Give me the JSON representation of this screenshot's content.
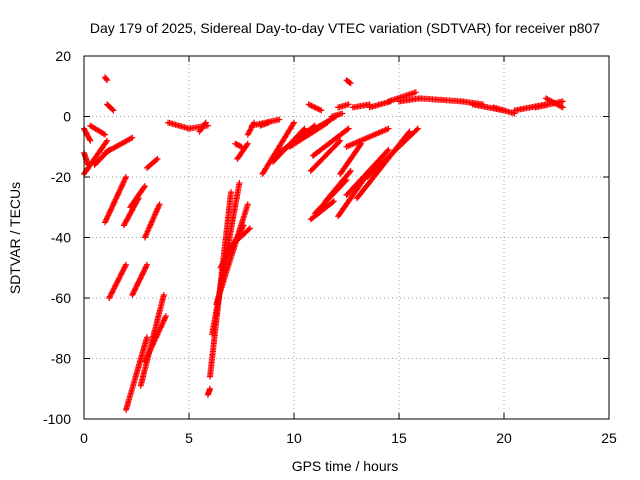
{
  "chart_data": {
    "type": "scatter",
    "title": "Day 179 of 2025, Sidereal Day-to-day VTEC variation (SDTVAR) for receiver p807",
    "xlabel": "GPS time / hours",
    "ylabel": "SDTVAR / TECUs",
    "xlim": [
      0,
      25
    ],
    "ylim": [
      -100,
      20
    ],
    "x_ticks": [
      0,
      5,
      10,
      15,
      20,
      25
    ],
    "y_ticks": [
      -100,
      -80,
      -60,
      -40,
      -20,
      0,
      20
    ],
    "x_tick_labels": [
      "0",
      "5",
      "10",
      "15",
      "20",
      "25"
    ],
    "y_tick_labels": [
      "-100",
      "-80",
      "-60",
      "-40",
      "-20",
      "0",
      "20"
    ],
    "grid": true,
    "marker": "+",
    "series": [
      {
        "name": "SDTVAR",
        "color": "#ff0000",
        "segments": [
          {
            "x": [
              0.0,
              0.3
            ],
            "y": [
              -4,
              -8
            ]
          },
          {
            "x": [
              0.0,
              0.2
            ],
            "y": [
              -12,
              -16
            ]
          },
          {
            "x": [
              0.0,
              1.1
            ],
            "y": [
              -19,
              -8
            ]
          },
          {
            "x": [
              0.3,
              1.0
            ],
            "y": [
              -3,
              -6
            ]
          },
          {
            "x": [
              0.5,
              1.2
            ],
            "y": [
              -16,
              -11
            ]
          },
          {
            "x": [
              1.0,
              2.3
            ],
            "y": [
              -12,
              -7
            ]
          },
          {
            "x": [
              1.0,
              1.1
            ],
            "y": [
              13,
              12
            ]
          },
          {
            "x": [
              1.1,
              1.4
            ],
            "y": [
              4,
              2
            ]
          },
          {
            "x": [
              1.0,
              2.0
            ],
            "y": [
              -35,
              -20
            ]
          },
          {
            "x": [
              1.2,
              2.0
            ],
            "y": [
              -60,
              -49
            ]
          },
          {
            "x": [
              1.9,
              2.6
            ],
            "y": [
              -36,
              -27
            ]
          },
          {
            "x": [
              2.2,
              2.9
            ],
            "y": [
              -30,
              -23
            ]
          },
          {
            "x": [
              2.3,
              3.0
            ],
            "y": [
              -59,
              -49
            ]
          },
          {
            "x": [
              2.0,
              3.0
            ],
            "y": [
              -97,
              -73
            ]
          },
          {
            "x": [
              2.7,
              3.8
            ],
            "y": [
              -89,
              -59
            ]
          },
          {
            "x": [
              2.9,
              3.9
            ],
            "y": [
              -81,
              -66
            ]
          },
          {
            "x": [
              2.9,
              3.6
            ],
            "y": [
              -40,
              -29
            ]
          },
          {
            "x": [
              3.0,
              3.5
            ],
            "y": [
              -17,
              -14
            ]
          },
          {
            "x": [
              4.0,
              5.0
            ],
            "y": [
              -2,
              -4
            ]
          },
          {
            "x": [
              5.0,
              5.9
            ],
            "y": [
              -4,
              -3
            ]
          },
          {
            "x": [
              5.5,
              5.8
            ],
            "y": [
              -5,
              -2
            ]
          },
          {
            "x": [
              5.9,
              6.0
            ],
            "y": [
              -92,
              -90
            ]
          },
          {
            "x": [
              6.0,
              7.0
            ],
            "y": [
              -86,
              -25
            ]
          },
          {
            "x": [
              6.1,
              7.4
            ],
            "y": [
              -72,
              -22
            ]
          },
          {
            "x": [
              6.3,
              7.8
            ],
            "y": [
              -62,
              -29
            ]
          },
          {
            "x": [
              6.5,
              7.6
            ],
            "y": [
              -50,
              -36
            ]
          },
          {
            "x": [
              6.8,
              7.9
            ],
            "y": [
              -44,
              -37
            ]
          },
          {
            "x": [
              7.3,
              7.8
            ],
            "y": [
              -14,
              -9
            ]
          },
          {
            "x": [
              7.2,
              7.5
            ],
            "y": [
              -9,
              -10
            ]
          },
          {
            "x": [
              7.8,
              8.1
            ],
            "y": [
              -6,
              -2
            ]
          },
          {
            "x": [
              8.0,
              9.3
            ],
            "y": [
              -3,
              -1
            ]
          },
          {
            "x": [
              8.4,
              8.8
            ],
            "y": [
              -3,
              -2
            ]
          },
          {
            "x": [
              8.5,
              10.0
            ],
            "y": [
              -19,
              -2
            ]
          },
          {
            "x": [
              9.0,
              10.5
            ],
            "y": [
              -15,
              -4
            ]
          },
          {
            "x": [
              9.3,
              11.0
            ],
            "y": [
              -12,
              -3
            ]
          },
          {
            "x": [
              9.8,
              11.6
            ],
            "y": [
              -10,
              -2
            ]
          },
          {
            "x": [
              10.0,
              12.0
            ],
            "y": [
              -8,
              0
            ]
          },
          {
            "x": [
              10.7,
              11.3
            ],
            "y": [
              4,
              2
            ]
          },
          {
            "x": [
              10.8,
              12.2
            ],
            "y": [
              -18,
              -8
            ]
          },
          {
            "x": [
              10.9,
              12.6
            ],
            "y": [
              -13,
              -4
            ]
          },
          {
            "x": [
              10.8,
              11.9
            ],
            "y": [
              -34,
              -28
            ]
          },
          {
            "x": [
              11.0,
              12.5
            ],
            "y": [
              -32,
              -21
            ]
          },
          {
            "x": [
              11.5,
              12.7
            ],
            "y": [
              -28,
              -18
            ]
          },
          {
            "x": [
              11.8,
              12.3
            ],
            "y": [
              0,
              1
            ]
          },
          {
            "x": [
              12.1,
              13.5
            ],
            "y": [
              -33,
              -19
            ]
          },
          {
            "x": [
              12.5,
              14.5
            ],
            "y": [
              -26,
              -11
            ]
          },
          {
            "x": [
              12.2,
              13.2
            ],
            "y": [
              -19,
              -9
            ]
          },
          {
            "x": [
              12.5,
              14.5
            ],
            "y": [
              -10,
              -4
            ]
          },
          {
            "x": [
              13.0,
              15.5
            ],
            "y": [
              -27,
              -5
            ]
          },
          {
            "x": [
              13.5,
              15.9
            ],
            "y": [
              -20,
              -4
            ]
          },
          {
            "x": [
              12.1,
              12.6
            ],
            "y": [
              3,
              4
            ]
          },
          {
            "x": [
              12.5,
              12.7
            ],
            "y": [
              12,
              11
            ]
          },
          {
            "x": [
              12.8,
              13.6
            ],
            "y": [
              3,
              4
            ]
          },
          {
            "x": [
              13.6,
              14.6
            ],
            "y": [
              3,
              5
            ]
          },
          {
            "x": [
              14.5,
              15.8
            ],
            "y": [
              5,
              8
            ]
          },
          {
            "x": [
              15.0,
              16.0
            ],
            "y": [
              5,
              6
            ]
          },
          {
            "x": [
              16.0,
              18.0
            ],
            "y": [
              6,
              5
            ]
          },
          {
            "x": [
              18.0,
              19.0
            ],
            "y": [
              5,
              4
            ]
          },
          {
            "x": [
              18.5,
              20.0
            ],
            "y": [
              4,
              2
            ]
          },
          {
            "x": [
              19.5,
              20.5
            ],
            "y": [
              3,
              1
            ]
          },
          {
            "x": [
              20.5,
              22.0
            ],
            "y": [
              2,
              4
            ]
          },
          {
            "x": [
              21.5,
              22.8
            ],
            "y": [
              3,
              5
            ]
          },
          {
            "x": [
              22.0,
              22.8
            ],
            "y": [
              6,
              3
            ]
          }
        ]
      }
    ]
  }
}
